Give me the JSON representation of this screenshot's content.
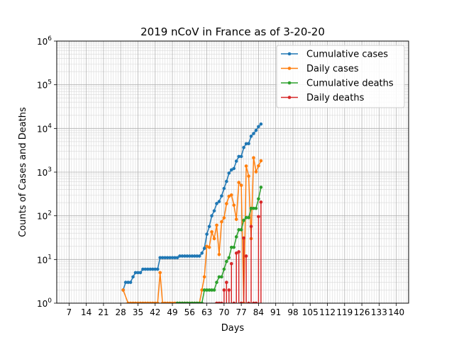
{
  "chart_data": {
    "type": "line",
    "title": "2019 nCoV in France as of 3-20-20",
    "xlabel": "Days",
    "ylabel": "Counts of Cases and Deaths",
    "xlim": [
      2,
      145
    ],
    "ylim": [
      1,
      1000000
    ],
    "yscale": "log",
    "grid": true,
    "legend_position": "top-right",
    "x_ticks": [
      7,
      14,
      21,
      28,
      35,
      42,
      49,
      56,
      63,
      70,
      77,
      84,
      91,
      98,
      105,
      112,
      119,
      126,
      133,
      140
    ],
    "x_tick_labels": [
      "7",
      "14",
      "21",
      "28",
      "35",
      "42",
      "49",
      "56",
      "63",
      "70",
      "77",
      "84",
      "91",
      "98",
      "105",
      "112",
      "119",
      "126",
      "133",
      "140"
    ],
    "y_ticks": [
      1,
      10,
      100,
      1000,
      10000,
      100000,
      1000000
    ],
    "y_tick_labels": [
      {
        "base": "10",
        "exp": "0"
      },
      {
        "base": "10",
        "exp": "1"
      },
      {
        "base": "10",
        "exp": "2"
      },
      {
        "base": "10",
        "exp": "3"
      },
      {
        "base": "10",
        "exp": "4"
      },
      {
        "base": "10",
        "exp": "5"
      },
      {
        "base": "10",
        "exp": "6"
      }
    ],
    "series": [
      {
        "name": "Cumulative cases",
        "color": "#1f77b4",
        "style": "line",
        "x": [
          29,
          30,
          31,
          32,
          33,
          34,
          35,
          36,
          37,
          38,
          39,
          40,
          41,
          42,
          43,
          44,
          45,
          46,
          47,
          48,
          49,
          50,
          51,
          52,
          53,
          54,
          55,
          56,
          57,
          58,
          59,
          60,
          61,
          62,
          63,
          64,
          65,
          66,
          67,
          68,
          69,
          70,
          71,
          72,
          73,
          74,
          75,
          76,
          77,
          78,
          79,
          80,
          81,
          82,
          83,
          84,
          85
        ],
        "values": [
          2,
          3,
          3,
          3,
          4,
          5,
          5,
          5,
          6,
          6,
          6,
          6,
          6,
          6,
          6,
          11,
          11,
          11,
          11,
          11,
          11,
          11,
          11,
          12,
          12,
          12,
          12,
          12,
          12,
          12,
          12,
          12,
          14,
          18,
          38,
          57,
          100,
          130,
          191,
          212,
          285,
          423,
          613,
          949,
          1126,
          1209,
          1784,
          2281,
          2281,
          3661,
          4469,
          4499,
          6633,
          7652,
          9043,
          10995,
          12612
        ]
      },
      {
        "name": "Daily cases",
        "color": "#ff7f0e",
        "style": "line",
        "x": [
          29,
          31,
          32,
          33,
          34,
          35,
          36,
          37,
          38,
          39,
          40,
          41,
          42,
          43,
          44,
          45,
          46,
          47,
          48,
          49,
          50,
          51,
          52,
          53,
          54,
          55,
          56,
          57,
          58,
          59,
          60,
          61,
          62,
          63,
          64,
          65,
          66,
          67,
          68,
          69,
          70,
          71,
          72,
          73,
          74,
          75,
          76,
          77,
          78,
          79,
          80,
          81,
          82,
          83,
          84,
          85
        ],
        "values": [
          2,
          1,
          1,
          1,
          1,
          1,
          1,
          1,
          1,
          1,
          1,
          1,
          1,
          1,
          5,
          1,
          1,
          1,
          1,
          1,
          1,
          1,
          1,
          1,
          1,
          1,
          1,
          1,
          1,
          1,
          1,
          2,
          4,
          20,
          19,
          43,
          30,
          61,
          13,
          73,
          90,
          190,
          280,
          300,
          175,
          83,
          580,
          500,
          1,
          1380,
          808,
          30,
          2134,
          1019,
          1391,
          1821
        ]
      },
      {
        "name": "Cumulative deaths",
        "color": "#2ca02c",
        "style": "line",
        "x": [
          51,
          52,
          53,
          54,
          55,
          56,
          57,
          58,
          59,
          60,
          61,
          62,
          63,
          64,
          65,
          66,
          67,
          68,
          69,
          70,
          71,
          72,
          73,
          74,
          75,
          76,
          77,
          78,
          79,
          80,
          81,
          82,
          83,
          84,
          85
        ],
        "values": [
          1,
          1,
          1,
          1,
          1,
          1,
          1,
          1,
          1,
          1,
          1,
          2,
          2,
          2,
          2,
          2,
          3,
          4,
          4,
          6,
          9,
          11,
          19,
          19,
          33,
          48,
          48,
          79,
          91,
          91,
          148,
          148,
          148,
          244,
          450
        ]
      },
      {
        "name": "Daily deaths",
        "color": "#d62728",
        "style": "stem",
        "x": [
          67,
          68,
          69,
          70,
          71,
          72,
          73,
          74,
          75,
          76,
          77,
          78,
          79,
          80,
          81,
          82,
          83,
          84,
          85
        ],
        "values": [
          1,
          1,
          1,
          2,
          3,
          2,
          8,
          1,
          14,
          15,
          1,
          31,
          12,
          1,
          57,
          1,
          1,
          96,
          206
        ]
      }
    ]
  }
}
